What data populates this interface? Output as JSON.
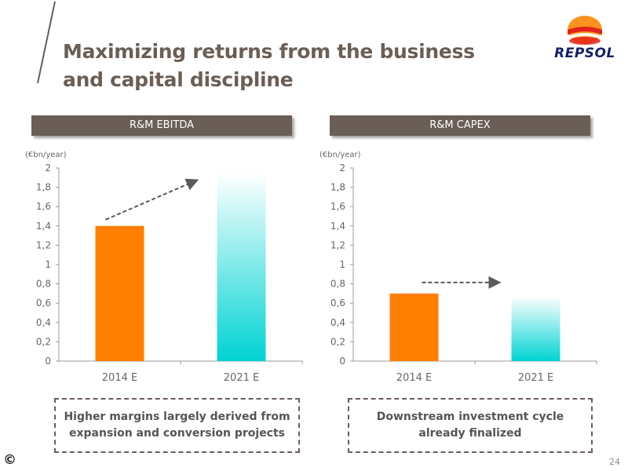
{
  "title": "Maximizing returns from the business and capital discipline",
  "brand": {
    "name": "REPSOL",
    "colors": {
      "orange": "#f7931e",
      "red": "#e2231a",
      "navy": "#12206b"
    }
  },
  "colors": {
    "bar_orange": "#ff8000",
    "bar_teal": "#00d3d3",
    "banner": "#6b5e56"
  },
  "chart_data": [
    {
      "type": "bar",
      "banner": "R&M EBITDA",
      "unit": "(€bn/year)",
      "categories": [
        "2014 E",
        "2021 E"
      ],
      "values": [
        1.4,
        1.95
      ],
      "ylim": [
        0,
        2
      ],
      "yticks": [
        "0",
        "0,2",
        "0,4",
        "0,6",
        "0,8",
        "1",
        "1,2",
        "1,4",
        "1,6",
        "1,8",
        "2"
      ],
      "grid": false,
      "annotation": "dashed arrow rising from 2014 E to 2021 E"
    },
    {
      "type": "bar",
      "banner": "R&M CAPEX",
      "unit": "(€bn/year)",
      "categories": [
        "2014 E",
        "2021 E"
      ],
      "values": [
        0.7,
        0.67
      ],
      "ylim": [
        0,
        2
      ],
      "yticks": [
        "0",
        "0,2",
        "0,4",
        "0,6",
        "0,8",
        "1",
        "1,2",
        "1,4",
        "1,6",
        "1,8",
        "2"
      ],
      "grid": false,
      "annotation": "dashed horizontal arrow from 2014 E to 2021 E"
    }
  ],
  "notes": {
    "left": "Higher margins largely derived from expansion and conversion projects",
    "right": "Downstream investment cycle already finalized"
  },
  "footer": {
    "copyright": "©",
    "page": "24"
  }
}
